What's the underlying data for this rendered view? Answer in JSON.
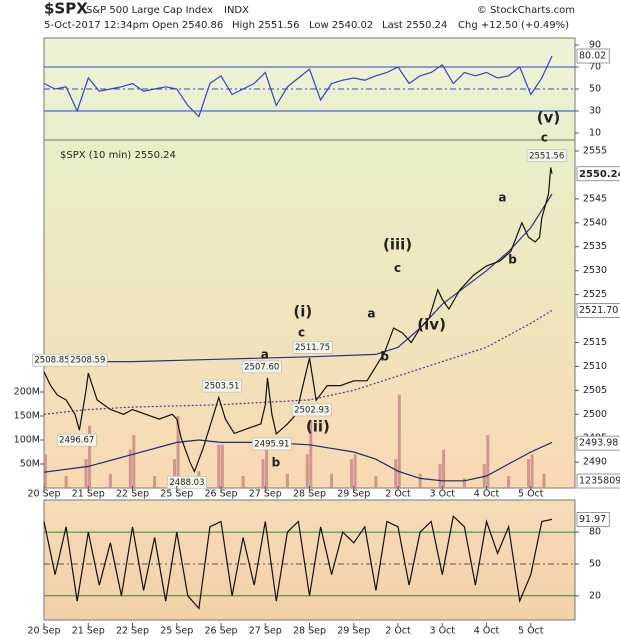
{
  "header": {
    "symbol": "$SPX",
    "name": "S&P 500 Large Cap Index",
    "exchange": "INDX",
    "datetime": "5-Oct-2017 12:34pm",
    "quote": [
      "Open 2540.86",
      "High 2551.56",
      "Low 2540.02",
      "Last 2550.24",
      "Chg +12.50 (+0.49%)"
    ],
    "source": "© StockCharts.com"
  },
  "chart_data": [
    {
      "type": "line",
      "color": "#3344cc",
      "x": [
        0,
        0.25,
        0.5,
        0.75,
        1,
        1.25,
        1.5,
        1.75,
        2,
        2.25,
        2.5,
        2.75,
        3,
        3.25,
        3.5,
        3.75,
        4,
        4.25,
        4.5,
        4.75,
        5,
        5.25,
        5.5,
        5.75,
        6,
        6.25,
        6.5,
        6.75,
        7,
        7.25,
        7.5,
        7.75,
        8,
        8.25,
        8.5,
        8.75,
        9,
        9.25,
        9.5,
        9.75,
        10,
        10.25,
        10.5,
        10.75,
        11,
        11.25,
        11.48
      ],
      "values": [
        55,
        50,
        52,
        30,
        60,
        48,
        50,
        52,
        55,
        48,
        50,
        52,
        50,
        35,
        25,
        55,
        62,
        45,
        50,
        55,
        65,
        35,
        52,
        60,
        68,
        40,
        55,
        58,
        60,
        58,
        62,
        65,
        70,
        55,
        62,
        65,
        72,
        55,
        65,
        62,
        65,
        60,
        62,
        70,
        45,
        60,
        80.02
      ],
      "xlim": [
        0,
        12
      ],
      "ylim": [
        3.6,
        96.4
      ],
      "yticks": [
        10,
        30,
        50,
        70,
        90
      ],
      "hlines": [
        70,
        30
      ],
      "dashed_hlines": [
        50
      ],
      "last_label": 80.02
    },
    {
      "type": "line",
      "label": "$SPX (10 min) 2550.24",
      "color": "#111111",
      "x": [
        0,
        0.15,
        0.3,
        0.5,
        0.7,
        0.8,
        0.95,
        1,
        1.2,
        1.5,
        1.8,
        2,
        2.3,
        2.6,
        2.9,
        3,
        3.1,
        3.3,
        3.4,
        3.6,
        3.8,
        3.95,
        4.1,
        4.3,
        4.6,
        4.9,
        5,
        5.05,
        5.15,
        5.25,
        5.5,
        5.7,
        5.85,
        6,
        6.1,
        6.15,
        6.4,
        6.7,
        7,
        7.3,
        7.5,
        7.7,
        7.9,
        8.1,
        8.3,
        8.5,
        8.7,
        8.9,
        9,
        9.15,
        9.4,
        9.7,
        10,
        10.3,
        10.55,
        10.8,
        10.95,
        11.1,
        11.2,
        11.25,
        11.4,
        11.45,
        11.48
      ],
      "values": [
        2508.85,
        2506,
        2504,
        2503,
        2500,
        2496.67,
        2505,
        2508.59,
        2503,
        2501,
        2500,
        2501,
        2500,
        2499,
        2500,
        2499,
        2495,
        2490,
        2488.03,
        2493,
        2499,
        2503.51,
        2499,
        2496,
        2497,
        2498,
        2502,
        2507.6,
        2500,
        2495.91,
        2498,
        2500,
        2506,
        2511.75,
        2506,
        2502.93,
        2506,
        2506,
        2507,
        2507,
        2510,
        2513,
        2518,
        2517,
        2515,
        2518,
        2520,
        2526,
        2524,
        2522,
        2526,
        2529,
        2531,
        2532,
        2534,
        2540,
        2537,
        2536,
        2537,
        2541,
        2546,
        2551.56,
        2550.24
      ],
      "xlim": [
        0,
        12
      ],
      "ylim": [
        2484.6,
        2557.3
      ],
      "yticks": [
        2490,
        2495,
        2500,
        2505,
        2510,
        2515,
        2525,
        2530,
        2535,
        2540,
        2545,
        2555
      ],
      "xticks": [
        {
          "value": 0,
          "label": "20 Sep"
        },
        {
          "value": 1,
          "label": "21 Sep"
        },
        {
          "value": 2,
          "label": "22 Sep"
        },
        {
          "value": 3,
          "label": "25 Sep"
        },
        {
          "value": 4,
          "label": "26 Sep"
        },
        {
          "value": 5,
          "label": "27 Sep"
        },
        {
          "value": 6,
          "label": "28 Sep"
        },
        {
          "value": 7,
          "label": "29 Sep"
        },
        {
          "value": 8,
          "label": "2 Oct"
        },
        {
          "value": 9,
          "label": "3 Oct"
        },
        {
          "value": 10,
          "label": "4 Oct"
        },
        {
          "value": 11,
          "label": "5 Oct"
        }
      ],
      "overlays": [
        {
          "color": "#2b2f8f",
          "dashed": false,
          "x": [
            0,
            2,
            4,
            6,
            7.5,
            8,
            8.5,
            9,
            10,
            10.5,
            11,
            11.48
          ],
          "values": [
            2511,
            2511,
            2511.5,
            2512,
            2512.5,
            2514,
            2518,
            2523,
            2530,
            2534,
            2539,
            2546
          ]
        },
        {
          "color": "#4a3b8f",
          "dashed": true,
          "x": [
            0,
            1,
            2,
            4,
            6,
            7,
            8,
            9,
            10,
            11,
            11.48
          ],
          "values": [
            2500,
            2501,
            2501.5,
            2502,
            2503,
            2505,
            2508,
            2511,
            2514,
            2519,
            2521.7
          ]
        }
      ],
      "price_boxes": [
        {
          "value": 2550.24,
          "bold": true
        },
        {
          "value": 2521.7,
          "label": "2521.70",
          "bold": false
        },
        {
          "value": 2493.98,
          "bold": false
        }
      ],
      "volume": {
        "color": "#c98a8a",
        "line_color": "#1a2a7a",
        "x": [
          0.03,
          0.5,
          0.95,
          1.03,
          1.5,
          1.95,
          2.03,
          2.5,
          2.95,
          3.03,
          3.5,
          3.95,
          4.03,
          4.5,
          4.95,
          5.03,
          5.5,
          5.95,
          6.03,
          6.5,
          6.95,
          7.03,
          7.5,
          7.95,
          8.03,
          8.5,
          8.95,
          9.03,
          9.5,
          9.95,
          10.03,
          10.5,
          10.95,
          11.03,
          11.3
        ],
        "values": [
          70000000,
          25000000,
          60000000,
          130000000,
          30000000,
          80000000,
          110000000,
          25000000,
          60000000,
          150000000,
          35000000,
          90000000,
          90000000,
          25000000,
          60000000,
          100000000,
          30000000,
          70000000,
          140000000,
          30000000,
          60000000,
          70000000,
          25000000,
          60000000,
          195000000,
          30000000,
          50000000,
          80000000,
          20000000,
          50000000,
          110000000,
          25000000,
          60000000,
          70000000,
          30000000
        ],
        "ma_x": [
          0,
          1,
          2,
          3,
          3.5,
          4,
          5,
          6,
          7,
          7.5,
          8,
          8.5,
          9,
          9.5,
          10,
          10.5,
          11,
          11.48
        ],
        "ma_values": [
          33000000,
          45000000,
          70000000,
          95000000,
          100000000,
          95000000,
          95000000,
          90000000,
          75000000,
          60000000,
          35000000,
          20000000,
          15000000,
          15000000,
          25000000,
          50000000,
          75000000,
          95000000
        ],
        "ylim": [
          0,
          725000000
        ],
        "yticks": [
          {
            "value": 50000000,
            "label": "50M"
          },
          {
            "value": 100000000,
            "label": "100M"
          },
          {
            "value": 150000000,
            "label": "150M"
          },
          {
            "value": 200000000,
            "label": "200M"
          }
        ],
        "last_label": 1235809
      },
      "annotations": [
        {
          "text": "(v)",
          "x": 11.4,
          "y": 2561.9,
          "color": "#2e8b2e",
          "boxed": false
        },
        {
          "text": "c",
          "x": 11.31,
          "y": 2557.7,
          "color": "#111111",
          "boxed": false
        },
        {
          "text": "2551.56",
          "x": 11.36,
          "y": 2554,
          "color": "#222222",
          "boxed": true
        },
        {
          "text": "a",
          "x": 10.36,
          "y": 2545.2,
          "color": "#111111",
          "boxed": false
        },
        {
          "text": "b",
          "x": 10.59,
          "y": 2532.2,
          "color": "#111111",
          "boxed": false
        },
        {
          "text": "(iii)",
          "x": 7.99,
          "y": 2535.4,
          "color": "#2e8b2e",
          "boxed": false
        },
        {
          "text": "c",
          "x": 7.99,
          "y": 2530.5,
          "color": "#111111",
          "boxed": false
        },
        {
          "text": "(iv)",
          "x": 8.76,
          "y": 2518.6,
          "color": "#2e8b2e",
          "boxed": false
        },
        {
          "text": "a",
          "x": 7.4,
          "y": 2520.9,
          "color": "#111111",
          "boxed": false
        },
        {
          "text": "b",
          "x": 7.7,
          "y": 2512,
          "color": "#111111",
          "boxed": false
        },
        {
          "text": "(i)",
          "x": 5.85,
          "y": 2521.4,
          "color": "#2e8b2e",
          "boxed": false
        },
        {
          "text": "c",
          "x": 5.82,
          "y": 2517,
          "color": "#111111",
          "boxed": false
        },
        {
          "text": "2511.75",
          "x": 6.07,
          "y": 2514,
          "color": "#222222",
          "boxed": true
        },
        {
          "text": "a",
          "x": 4.99,
          "y": 2512.4,
          "color": "#111111",
          "boxed": false
        },
        {
          "text": "2507.60",
          "x": 4.92,
          "y": 2509.9,
          "color": "#222222",
          "boxed": true
        },
        {
          "text": "(ii)",
          "x": 6.19,
          "y": 2497.3,
          "color": "#2e8b2e",
          "boxed": false
        },
        {
          "text": "2502.93",
          "x": 6.05,
          "y": 2500.9,
          "color": "#222222",
          "boxed": true
        },
        {
          "text": "b",
          "x": 5.24,
          "y": 2489.8,
          "color": "#111111",
          "boxed": false
        },
        {
          "text": "2495.91",
          "x": 5.15,
          "y": 2493.8,
          "color": "#222222",
          "boxed": true
        },
        {
          "text": "2503.51",
          "x": 4.02,
          "y": 2505.9,
          "color": "#222222",
          "boxed": true
        },
        {
          "text": "2488.03",
          "x": 3.23,
          "y": 2485.8,
          "color": "#222222",
          "boxed": true
        },
        {
          "text": "2496.67",
          "x": 0.74,
          "y": 2494.6,
          "color": "#222222",
          "boxed": true
        },
        {
          "text": "2508.85",
          "x": 0.18,
          "y": 2511.3,
          "color": "#222222",
          "boxed": true
        },
        {
          "text": "2508.59",
          "x": 0.99,
          "y": 2511.3,
          "color": "#222222",
          "boxed": true
        }
      ]
    },
    {
      "type": "line",
      "color": "#111111",
      "x": [
        0,
        0.25,
        0.5,
        0.75,
        1,
        1.25,
        1.5,
        1.75,
        2,
        2.25,
        2.5,
        2.75,
        3,
        3.25,
        3.5,
        3.75,
        4,
        4.25,
        4.5,
        4.75,
        5,
        5.25,
        5.5,
        5.75,
        6,
        6.25,
        6.5,
        6.75,
        7,
        7.25,
        7.5,
        7.75,
        8,
        8.25,
        8.5,
        8.75,
        9,
        9.25,
        9.5,
        9.75,
        10,
        10.25,
        10.5,
        10.75,
        11,
        11.25,
        11.48
      ],
      "values": [
        90,
        40,
        85,
        15,
        80,
        30,
        70,
        20,
        85,
        25,
        75,
        15,
        80,
        20,
        8,
        85,
        90,
        20,
        75,
        30,
        90,
        15,
        80,
        90,
        20,
        85,
        40,
        80,
        70,
        85,
        25,
        90,
        85,
        30,
        80,
        90,
        40,
        95,
        85,
        30,
        90,
        60,
        85,
        15,
        40,
        90,
        91.97
      ],
      "xlim": [
        0,
        12
      ],
      "ylim": [
        -2.8,
        110.3
      ],
      "yticks": [
        20,
        50,
        80
      ],
      "hlines": [
        80,
        20
      ],
      "dashed_hlines": [
        50
      ],
      "last_label": 91.97,
      "xticks": [
        {
          "value": 0,
          "label": "20 Sep"
        },
        {
          "value": 1,
          "label": "21 Sep"
        },
        {
          "value": 2,
          "label": "22 Sep"
        },
        {
          "value": 3,
          "label": "25 Sep"
        },
        {
          "value": 4,
          "label": "26 Sep"
        },
        {
          "value": 5,
          "label": "27 Sep"
        },
        {
          "value": 6,
          "label": "28 Sep"
        },
        {
          "value": 7,
          "label": "29 Sep"
        },
        {
          "value": 8,
          "label": "2 Oct"
        },
        {
          "value": 9,
          "label": "3 Oct"
        },
        {
          "value": 10,
          "label": "4 Oct"
        },
        {
          "value": 11,
          "label": "5 Oct"
        }
      ]
    }
  ]
}
